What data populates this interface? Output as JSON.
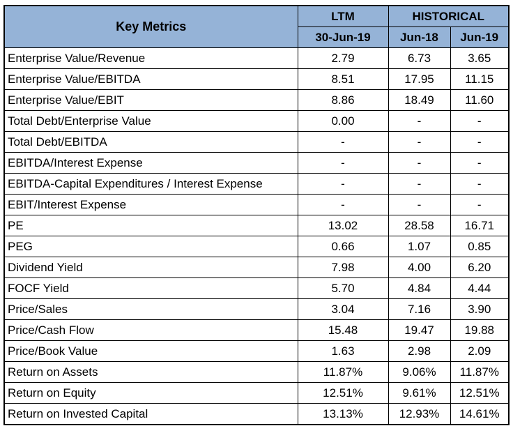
{
  "header": {
    "title": "Key Metrics",
    "ltm": "LTM",
    "historical": "HISTORICAL",
    "col_ltm": "30-Jun-19",
    "col_h1": "Jun-18",
    "col_h2": "Jun-19"
  },
  "rows": [
    {
      "label": "Enterprise Value/Revenue",
      "v": [
        "2.79",
        "6.73",
        "3.65"
      ]
    },
    {
      "label": "Enterprise Value/EBITDA",
      "v": [
        "8.51",
        "17.95",
        "11.15"
      ]
    },
    {
      "label": "Enterprise Value/EBIT",
      "v": [
        "8.86",
        "18.49",
        "11.60"
      ]
    },
    {
      "label": "Total Debt/Enterprise Value",
      "v": [
        "0.00",
        "-",
        "-"
      ]
    },
    {
      "label": "Total Debt/EBITDA",
      "v": [
        "-",
        "-",
        "-"
      ]
    },
    {
      "label": "EBITDA/Interest Expense",
      "v": [
        "-",
        "-",
        "-"
      ]
    },
    {
      "label": "EBITDA-Capital Expenditures / Interest Expense",
      "v": [
        "-",
        "-",
        "-"
      ]
    },
    {
      "label": "EBIT/Interest Expense",
      "v": [
        "-",
        "-",
        "-"
      ]
    },
    {
      "label": "PE",
      "v": [
        "13.02",
        "28.58",
        "16.71"
      ]
    },
    {
      "label": "PEG",
      "v": [
        "0.66",
        "1.07",
        "0.85"
      ]
    },
    {
      "label": "Dividend Yield",
      "v": [
        "7.98",
        "4.00",
        "6.20"
      ]
    },
    {
      "label": "FOCF Yield",
      "v": [
        "5.70",
        "4.84",
        "4.44"
      ]
    },
    {
      "label": "Price/Sales",
      "v": [
        "3.04",
        "7.16",
        "3.90"
      ]
    },
    {
      "label": "Price/Cash Flow",
      "v": [
        "15.48",
        "19.47",
        "19.88"
      ]
    },
    {
      "label": "Price/Book Value",
      "v": [
        "1.63",
        "2.98",
        "2.09"
      ]
    },
    {
      "label": "Return on Assets",
      "v": [
        "11.87%",
        "9.06%",
        "11.87%"
      ]
    },
    {
      "label": "Return on Equity",
      "v": [
        "12.51%",
        "9.61%",
        "12.51%"
      ]
    },
    {
      "label": "Return on Invested Capital",
      "v": [
        "13.13%",
        "12.93%",
        "14.61%"
      ]
    }
  ],
  "colors": {
    "header_bg": "#95b3d7"
  }
}
